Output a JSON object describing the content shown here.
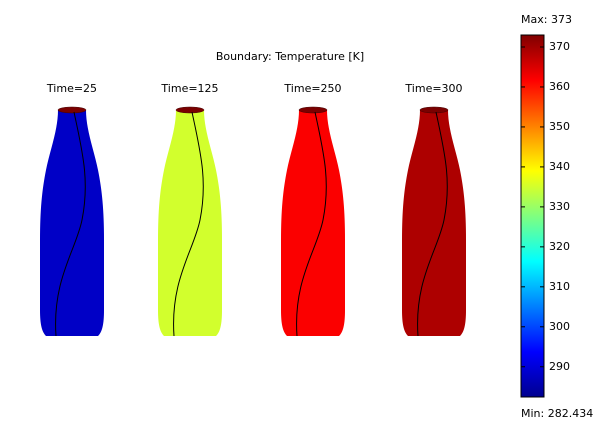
{
  "chart_data": {
    "type": "surface",
    "title": "Boundary: Temperature [K]",
    "categories": [
      "Time=25",
      "Time=125",
      "Time=250",
      "Time=300"
    ],
    "values": [
      288,
      335,
      362,
      369
    ],
    "clim": [
      282.434,
      373
    ],
    "cticks": [
      290,
      300,
      310,
      320,
      330,
      340,
      350,
      360,
      370
    ],
    "max": {
      "value": 373,
      "label": "Max: 373"
    },
    "min": {
      "value": 282.434,
      "label": "Min: 282.434"
    },
    "colormap": "jet"
  }
}
